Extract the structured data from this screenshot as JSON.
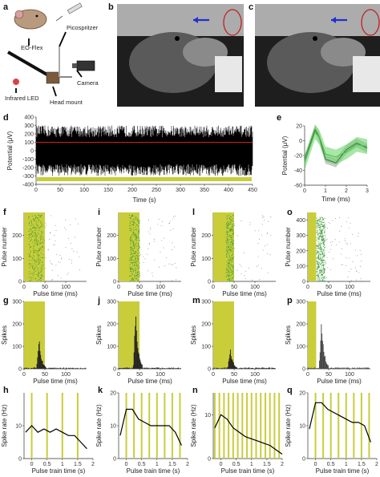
{
  "panel_letters": [
    "a",
    "b",
    "c",
    "d",
    "e",
    "f",
    "g",
    "h",
    "i",
    "j",
    "k",
    "l",
    "m",
    "n",
    "o",
    "p",
    "q"
  ],
  "setup_labels": {
    "picospritzer": "Picospritzer",
    "eoflex": "EO-Flex",
    "camera": "Camera",
    "infrared": "Infrared LED",
    "headmount": "Head mount"
  },
  "colors": {
    "stim": "#c9cd3a",
    "raster_green": "#3a9a3a",
    "red_line": "#d62020",
    "black": "#000000",
    "photo_dark": "#2a2a2a",
    "arrow_blue": "#2030d0",
    "circle_red": "#c02020"
  },
  "chart_data": [
    {
      "id": "d",
      "type": "line",
      "xlabel": "Time (s)",
      "ylabel": "Potential (μV)",
      "xlim": [
        0,
        450
      ],
      "ylim": [
        -400,
        400
      ],
      "xticks": [
        0,
        50,
        100,
        150,
        200,
        250,
        300,
        350,
        400,
        450
      ],
      "yticks": [
        -400,
        -300,
        -200,
        -100,
        0,
        100,
        200,
        300,
        400
      ],
      "threshold_uV": 100
    },
    {
      "id": "e",
      "type": "line",
      "xlabel": "Time (ms)",
      "ylabel": "Potential (μV)",
      "xlim": [
        0,
        3
      ],
      "ylim": [
        -60,
        20
      ],
      "xticks": [
        0,
        1,
        2,
        3
      ],
      "yticks": [
        -60,
        -40,
        -20,
        0,
        20
      ],
      "series": [
        {
          "color": "black",
          "x": [
            0,
            0.5,
            0.7,
            1.0,
            1.5,
            2.0,
            2.5,
            3.0
          ],
          "y": [
            -25,
            15,
            5,
            -25,
            -30,
            -12,
            -3,
            -10
          ]
        },
        {
          "color": "green",
          "x": [
            0,
            0.5,
            0.7,
            1.0,
            1.5,
            2.0,
            2.5,
            3.0
          ],
          "y": [
            -30,
            12,
            5,
            -18,
            -22,
            -15,
            -5,
            -8
          ]
        }
      ]
    },
    {
      "id": "f",
      "type": "scatter",
      "xlabel": "Pulse time (ms)",
      "ylabel": "Pulse number",
      "xlim": [
        0,
        150
      ],
      "ylim": [
        0,
        300
      ],
      "xticks": [
        0,
        50,
        100
      ],
      "yticks": [
        0,
        100,
        200
      ],
      "stim_ms": [
        0,
        50
      ],
      "cluster_ms": [
        10,
        45
      ]
    },
    {
      "id": "i",
      "type": "scatter",
      "xlabel": "Pulse time (ms)",
      "ylabel": "Pulse number",
      "xlim": [
        0,
        150
      ],
      "ylim": [
        0,
        300
      ],
      "xticks": [
        0,
        50,
        100
      ],
      "yticks": [
        0,
        100,
        200
      ],
      "stim_ms": [
        0,
        50
      ],
      "cluster_ms": [
        25,
        50
      ]
    },
    {
      "id": "l",
      "type": "scatter",
      "xlabel": "Pulse time (ms)",
      "ylabel": "Pulse number",
      "xlim": [
        0,
        150
      ],
      "ylim": [
        0,
        300
      ],
      "xticks": [
        0,
        50,
        100
      ],
      "yticks": [
        0,
        100,
        200
      ],
      "stim_ms": [
        0,
        50
      ],
      "cluster_ms": [
        30,
        48
      ]
    },
    {
      "id": "o",
      "type": "scatter",
      "xlabel": "Pulse time (ms)",
      "ylabel": "Pulse number",
      "xlim": [
        0,
        150
      ],
      "ylim": [
        0,
        450
      ],
      "xticks": [
        0,
        50,
        100
      ],
      "yticks": [
        0,
        100,
        200,
        300,
        400
      ],
      "stim_ms": [
        0,
        20
      ],
      "cluster_ms": [
        20,
        40
      ]
    },
    {
      "id": "g",
      "type": "bar",
      "xlabel": "Pulse time (ms)",
      "ylabel": "Spikes",
      "xlim": [
        0,
        150
      ],
      "ylim": [
        0,
        300
      ],
      "xticks": [
        0,
        50,
        100
      ],
      "yticks": [
        0,
        100,
        200,
        300
      ],
      "stim_ms": [
        0,
        50
      ],
      "peak_ms": 35,
      "peak": 140
    },
    {
      "id": "j",
      "type": "bar",
      "xlabel": "Pulse time (ms)",
      "ylabel": "Spikes",
      "xlim": [
        0,
        150
      ],
      "ylim": [
        0,
        300
      ],
      "xticks": [
        0,
        50,
        100
      ],
      "yticks": [
        0,
        100,
        200,
        300
      ],
      "stim_ms": [
        0,
        50
      ],
      "peak_ms": 40,
      "peak": 250
    },
    {
      "id": "m",
      "type": "bar",
      "xlabel": "Pulse time (ms)",
      "ylabel": "Spikes",
      "xlim": [
        0,
        150
      ],
      "ylim": [
        0,
        300
      ],
      "xticks": [
        0,
        50,
        100
      ],
      "yticks": [
        0,
        100,
        200,
        300
      ],
      "stim_ms": [
        0,
        50
      ],
      "peak_ms": 40,
      "peak": 100
    },
    {
      "id": "p",
      "type": "bar",
      "xlabel": "Pulse time (ms)",
      "ylabel": "Spikes",
      "xlim": [
        0,
        150
      ],
      "ylim": [
        0,
        300
      ],
      "xticks": [
        0,
        50,
        100
      ],
      "yticks": [
        0,
        100,
        200,
        300
      ],
      "stim_ms": [
        0,
        20
      ],
      "peak_ms": 32,
      "peak": 230
    },
    {
      "id": "h",
      "type": "line",
      "xlabel": "Pulse train time (s)",
      "ylabel": "Spike rate (Hz)",
      "xlim": [
        -0.25,
        2
      ],
      "ylim": [
        0,
        20
      ],
      "xticks": [
        0,
        0.5,
        1,
        1.5,
        2
      ],
      "yticks": [
        0,
        10
      ],
      "pulse_s": [
        0,
        0.5,
        1.0,
        1.5
      ],
      "x": [
        -0.2,
        0,
        0.2,
        0.4,
        0.6,
        0.8,
        1.0,
        1.2,
        1.4,
        1.6,
        1.8
      ],
      "y": [
        8,
        10,
        8,
        9,
        8,
        9,
        8,
        7,
        7,
        5,
        3
      ]
    },
    {
      "id": "k",
      "type": "line",
      "xlabel": "Pulse train time (s)",
      "ylabel": "Spike rate (Hz)",
      "xlim": [
        -0.25,
        2
      ],
      "ylim": [
        0,
        20
      ],
      "xticks": [
        0,
        0.5,
        1,
        1.5,
        2
      ],
      "yticks": [
        0,
        10,
        20
      ],
      "pulse_s": [
        0,
        0.25,
        0.5,
        0.75,
        1.0,
        1.25,
        1.5,
        1.75
      ],
      "x": [
        -0.2,
        0,
        0.2,
        0.4,
        0.6,
        0.8,
        1.0,
        1.2,
        1.4,
        1.6,
        1.8
      ],
      "y": [
        7,
        15,
        15,
        12,
        11,
        10,
        10,
        10,
        10,
        8,
        4
      ]
    },
    {
      "id": "n",
      "type": "line",
      "xlabel": "Pulse train time (s)",
      "ylabel": "Spike rate (Hz)",
      "xlim": [
        -0.25,
        2
      ],
      "ylim": [
        0,
        15
      ],
      "xticks": [
        0,
        0.5,
        1,
        1.5,
        2
      ],
      "yticks": [
        0,
        10
      ],
      "pulse_s": [
        -0.2,
        -0.05,
        0.1,
        0.25,
        0.4,
        0.55,
        0.7,
        0.85,
        1.0,
        1.15,
        1.3,
        1.45,
        1.6,
        1.75,
        1.9
      ],
      "x": [
        -0.2,
        0,
        0.2,
        0.4,
        0.6,
        0.8,
        1.0,
        1.2,
        1.4,
        1.6,
        1.8,
        2.0
      ],
      "y": [
        7,
        10,
        9,
        7,
        6,
        5,
        4.5,
        4,
        3.5,
        3,
        2,
        1
      ]
    },
    {
      "id": "q",
      "type": "line",
      "xlabel": "Pulse train time (s)",
      "ylabel": "Spike rate (Hz)",
      "xlim": [
        -0.25,
        2
      ],
      "ylim": [
        0,
        20
      ],
      "xticks": [
        0,
        0.5,
        1,
        1.5,
        2
      ],
      "yticks": [
        0,
        10,
        20
      ],
      "pulse_s": [
        0,
        0.25,
        0.5,
        0.75,
        1.0,
        1.25,
        1.5,
        1.75
      ],
      "x": [
        -0.2,
        0,
        0.2,
        0.4,
        0.6,
        0.8,
        1.0,
        1.2,
        1.4,
        1.6,
        1.8
      ],
      "y": [
        9,
        17,
        17,
        15,
        14,
        13,
        12,
        11,
        11,
        10,
        5
      ]
    }
  ]
}
